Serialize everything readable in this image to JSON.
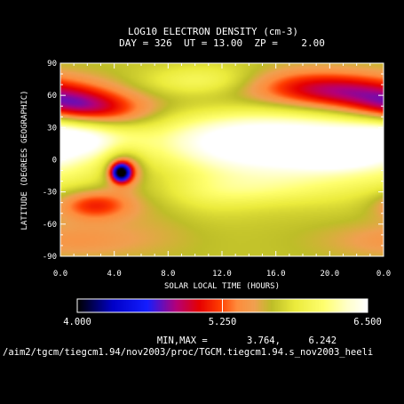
{
  "chart_data": {
    "type": "heatmap",
    "title": "LOG10 ELECTRON DENSITY (cm-3)",
    "subtitle": "DAY = 326  UT = 13.00  ZP =    2.00",
    "xlabel": "SOLAR LOCAL TIME (HOURS)",
    "ylabel": "LATITUDE (DEGREES GEOGRAPHIC)",
    "x_tick_labels": [
      "0.0",
      "4.0",
      "8.0",
      "12.0",
      "16.0",
      "20.0",
      "0.0"
    ],
    "y_tick_labels": [
      "90",
      "60",
      "30",
      "0",
      "-30",
      "-60",
      "-90"
    ],
    "x_range_hours": [
      0,
      24
    ],
    "y_range_deg": [
      -90,
      90
    ],
    "colorbar": {
      "min": 4.0,
      "max": 6.5,
      "labels": [
        "4.000",
        "5.250",
        "6.500"
      ]
    },
    "minmax_text": "MIN,MAX =       3.764,     6.242",
    "file_path": "/aim2/tgcm/tiegcm1.94/nov2003/proc/TGCM.tiegcm1.94.s_nov2003_heeli",
    "blobs": [
      {
        "lt": 12,
        "lat": 0,
        "dlt": 40,
        "dlat": 300,
        "val": -0.05
      },
      {
        "lt": 13.5,
        "lat": 20,
        "dlt": 6,
        "dlat": 22,
        "val": 0.55
      },
      {
        "lt": 19.5,
        "lat": 2,
        "dlt": 8,
        "dlat": 24,
        "val": 0.55
      },
      {
        "lt": 18.5,
        "lat": 20,
        "dlt": 6,
        "dlat": 14,
        "val": 0.25
      },
      {
        "lt": 20.5,
        "lat": 0,
        "dlt": 2,
        "dlat": 6,
        "val": 0.35
      },
      {
        "lt": 1.5,
        "lat": 25,
        "dlt": 3,
        "dlat": 12,
        "val": 0.45
      },
      {
        "lt": 0.5,
        "lat": 15,
        "dlt": 2,
        "dlat": 10,
        "val": 0.25
      },
      {
        "lt": 4.8,
        "lat": -8,
        "dlt": 1.0,
        "dlat": 12,
        "val": -0.6
      },
      {
        "lt": 4.5,
        "lat": -12,
        "dlt": 0.5,
        "dlat": 6,
        "val": -1.6
      },
      {
        "lt": 4.0,
        "lat": 0,
        "dlt": 1.5,
        "dlat": 22,
        "val": -0.1
      },
      {
        "lt": 3.5,
        "lat": 42,
        "dlt": 2.8,
        "dlat": 13,
        "val": -0.55
      },
      {
        "lt": 0.8,
        "lat": 50,
        "dlt": 2.5,
        "dlat": 10,
        "val": -0.45
      },
      {
        "lt": 2.5,
        "lat": -42,
        "dlt": 2,
        "dlat": 10,
        "val": -0.6
      },
      {
        "lt": 1.2,
        "lat": -75,
        "dlt": 4,
        "dlat": 12,
        "val": -0.25
      },
      {
        "lt": 21.5,
        "lat": 62,
        "dlt": 4,
        "dlat": 12,
        "val": -0.7
      },
      {
        "lt": 17,
        "lat": 70,
        "dlt": 4,
        "dlat": 12,
        "val": -0.35
      },
      {
        "lt": 10.5,
        "lat": 60,
        "dlt": 3,
        "dlat": 15,
        "val": -0.15
      },
      {
        "lt": 10,
        "lat": 72,
        "dlt": 3,
        "dlat": 10,
        "val": 0.3
      },
      {
        "lt": 12,
        "lat": 75,
        "dlt": 3,
        "dlat": 12,
        "val": 0.2
      },
      {
        "lt": 10,
        "lat": -38,
        "dlt": 3,
        "dlat": 15,
        "val": 0.15
      },
      {
        "lt": 13.5,
        "lat": -28,
        "dlt": 4,
        "dlat": 10,
        "val": 0.2
      },
      {
        "lt": 7.5,
        "lat": -30,
        "dlt": 2.5,
        "dlat": 30,
        "val": -0.15
      }
    ]
  }
}
